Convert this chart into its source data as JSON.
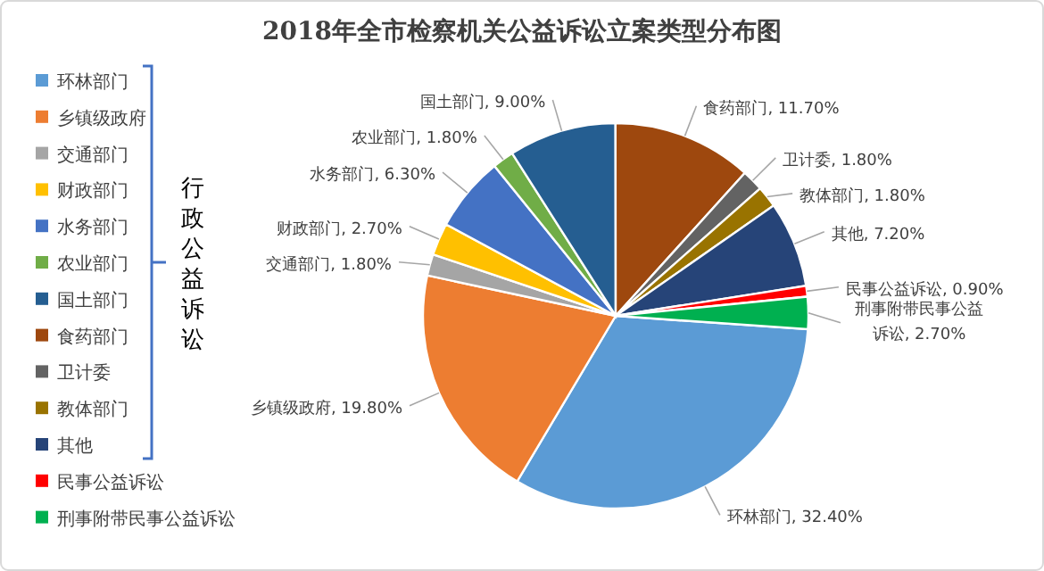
{
  "chart_data": {
    "type": "pie",
    "title": "2018年全市检察机关公益诉讼立案类型分布图",
    "categories": [
      "环林部门",
      "乡镇级政府",
      "交通部门",
      "财政部门",
      "水务部门",
      "农业部门",
      "国土部门",
      "食药部门",
      "卫计委",
      "教体部门",
      "其他",
      "民事公益诉讼",
      "刑事附带民事公益诉讼"
    ],
    "values": [
      32.4,
      19.8,
      1.8,
      2.7,
      6.3,
      1.8,
      9.0,
      11.7,
      1.8,
      1.8,
      7.2,
      0.9,
      2.7
    ],
    "value_labels": [
      ", 32.40%",
      ", 19.80%",
      ", 1.80%",
      ", 2.70%",
      ", 6.30%",
      ", 1.80%",
      ", 9.00%",
      ", 11.70%",
      ", 1.80%",
      ", 1.80%",
      ", 7.20%",
      ", 0.90%",
      ", 2.70%"
    ],
    "colors": [
      "#5b9bd5",
      "#ed7d31",
      "#a5a5a5",
      "#ffc000",
      "#4472c4",
      "#70ad47",
      "#255e91",
      "#9e480e",
      "#636363",
      "#997300",
      "#264478",
      "#ff0000",
      "#00b050"
    ],
    "legend": "left",
    "annotations": [
      "行政公益诉讼"
    ]
  }
}
